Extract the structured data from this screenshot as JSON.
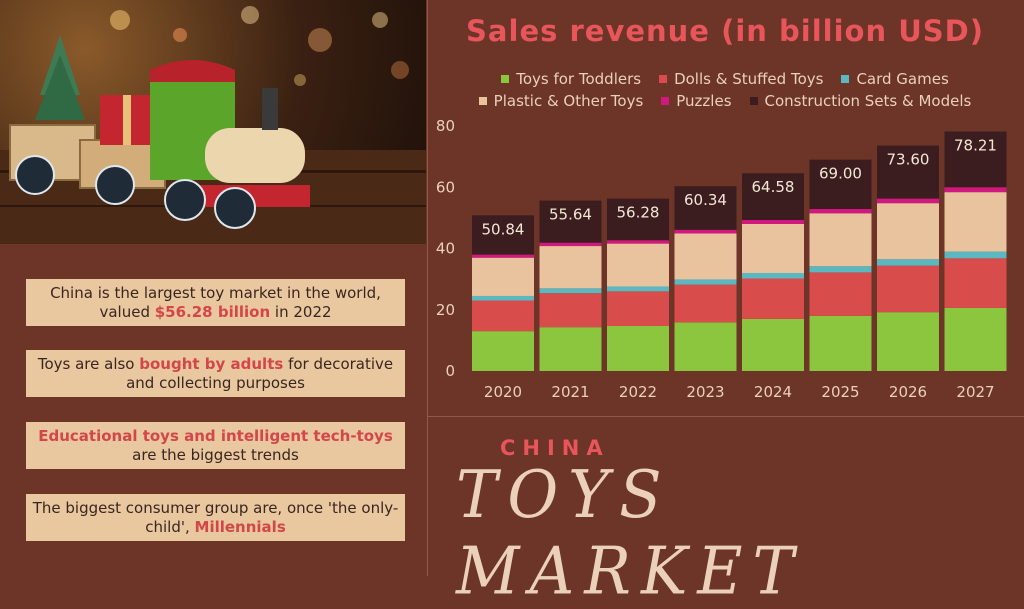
{
  "facts": [
    {
      "pre": "China is the largest toy market in the world, valued ",
      "hl": "$56.28 billion",
      "post": " in 2022"
    },
    {
      "pre": "Toys are also ",
      "hl": "bought by adults",
      "post": " for decorative and collecting purposes"
    },
    {
      "pre": "",
      "hl": "Educational toys and intelligent tech-toys",
      "post": " are the biggest trends"
    },
    {
      "pre": "The biggest consumer group are, once 'the only-child', ",
      "hl": "Millennials",
      "post": ""
    }
  ],
  "branding": {
    "china": "CHINA",
    "toys": "TOYS MARKET"
  },
  "photo_icon": "toy-train-photo",
  "chart_data": {
    "type": "bar",
    "stacked": true,
    "title": "Sales revenue (in billion USD)",
    "categories": [
      "2020",
      "2021",
      "2022",
      "2023",
      "2024",
      "2025",
      "2026",
      "2027"
    ],
    "series": [
      {
        "name": "Toys for Toddlers",
        "color": "#8cc63f",
        "values": [
          13.0,
          14.3,
          14.7,
          15.9,
          17.0,
          18.0,
          19.2,
          20.6
        ]
      },
      {
        "name": "Dolls & Stuffed Toys",
        "color": "#d94c4c",
        "values": [
          10.0,
          11.1,
          11.3,
          12.3,
          13.2,
          14.2,
          15.2,
          16.2
        ]
      },
      {
        "name": "Card Games",
        "color": "#5bb8c1",
        "values": [
          1.5,
          1.6,
          1.6,
          1.7,
          1.8,
          2.0,
          2.1,
          2.2
        ]
      },
      {
        "name": "Plastic & Other Toys",
        "color": "#e8c39e",
        "values": [
          12.5,
          13.8,
          14.0,
          15.0,
          16.0,
          17.3,
          18.3,
          19.4
        ]
      },
      {
        "name": "Puzzles",
        "color": "#d0187f",
        "values": [
          1.0,
          1.1,
          1.1,
          1.2,
          1.3,
          1.4,
          1.5,
          1.6
        ]
      },
      {
        "name": "Construction Sets & Models",
        "color": "#3b1d1f",
        "values": [
          12.84,
          13.74,
          13.58,
          14.24,
          15.28,
          16.1,
          17.3,
          18.21
        ]
      }
    ],
    "totals": [
      "50.84",
      "55.64",
      "56.28",
      "60.34",
      "64.58",
      "69.00",
      "73.60",
      "78.21"
    ],
    "yticks": [
      0,
      20,
      40,
      60,
      80
    ],
    "ylim": [
      0,
      80
    ],
    "grid": false,
    "legend_position": "top"
  }
}
